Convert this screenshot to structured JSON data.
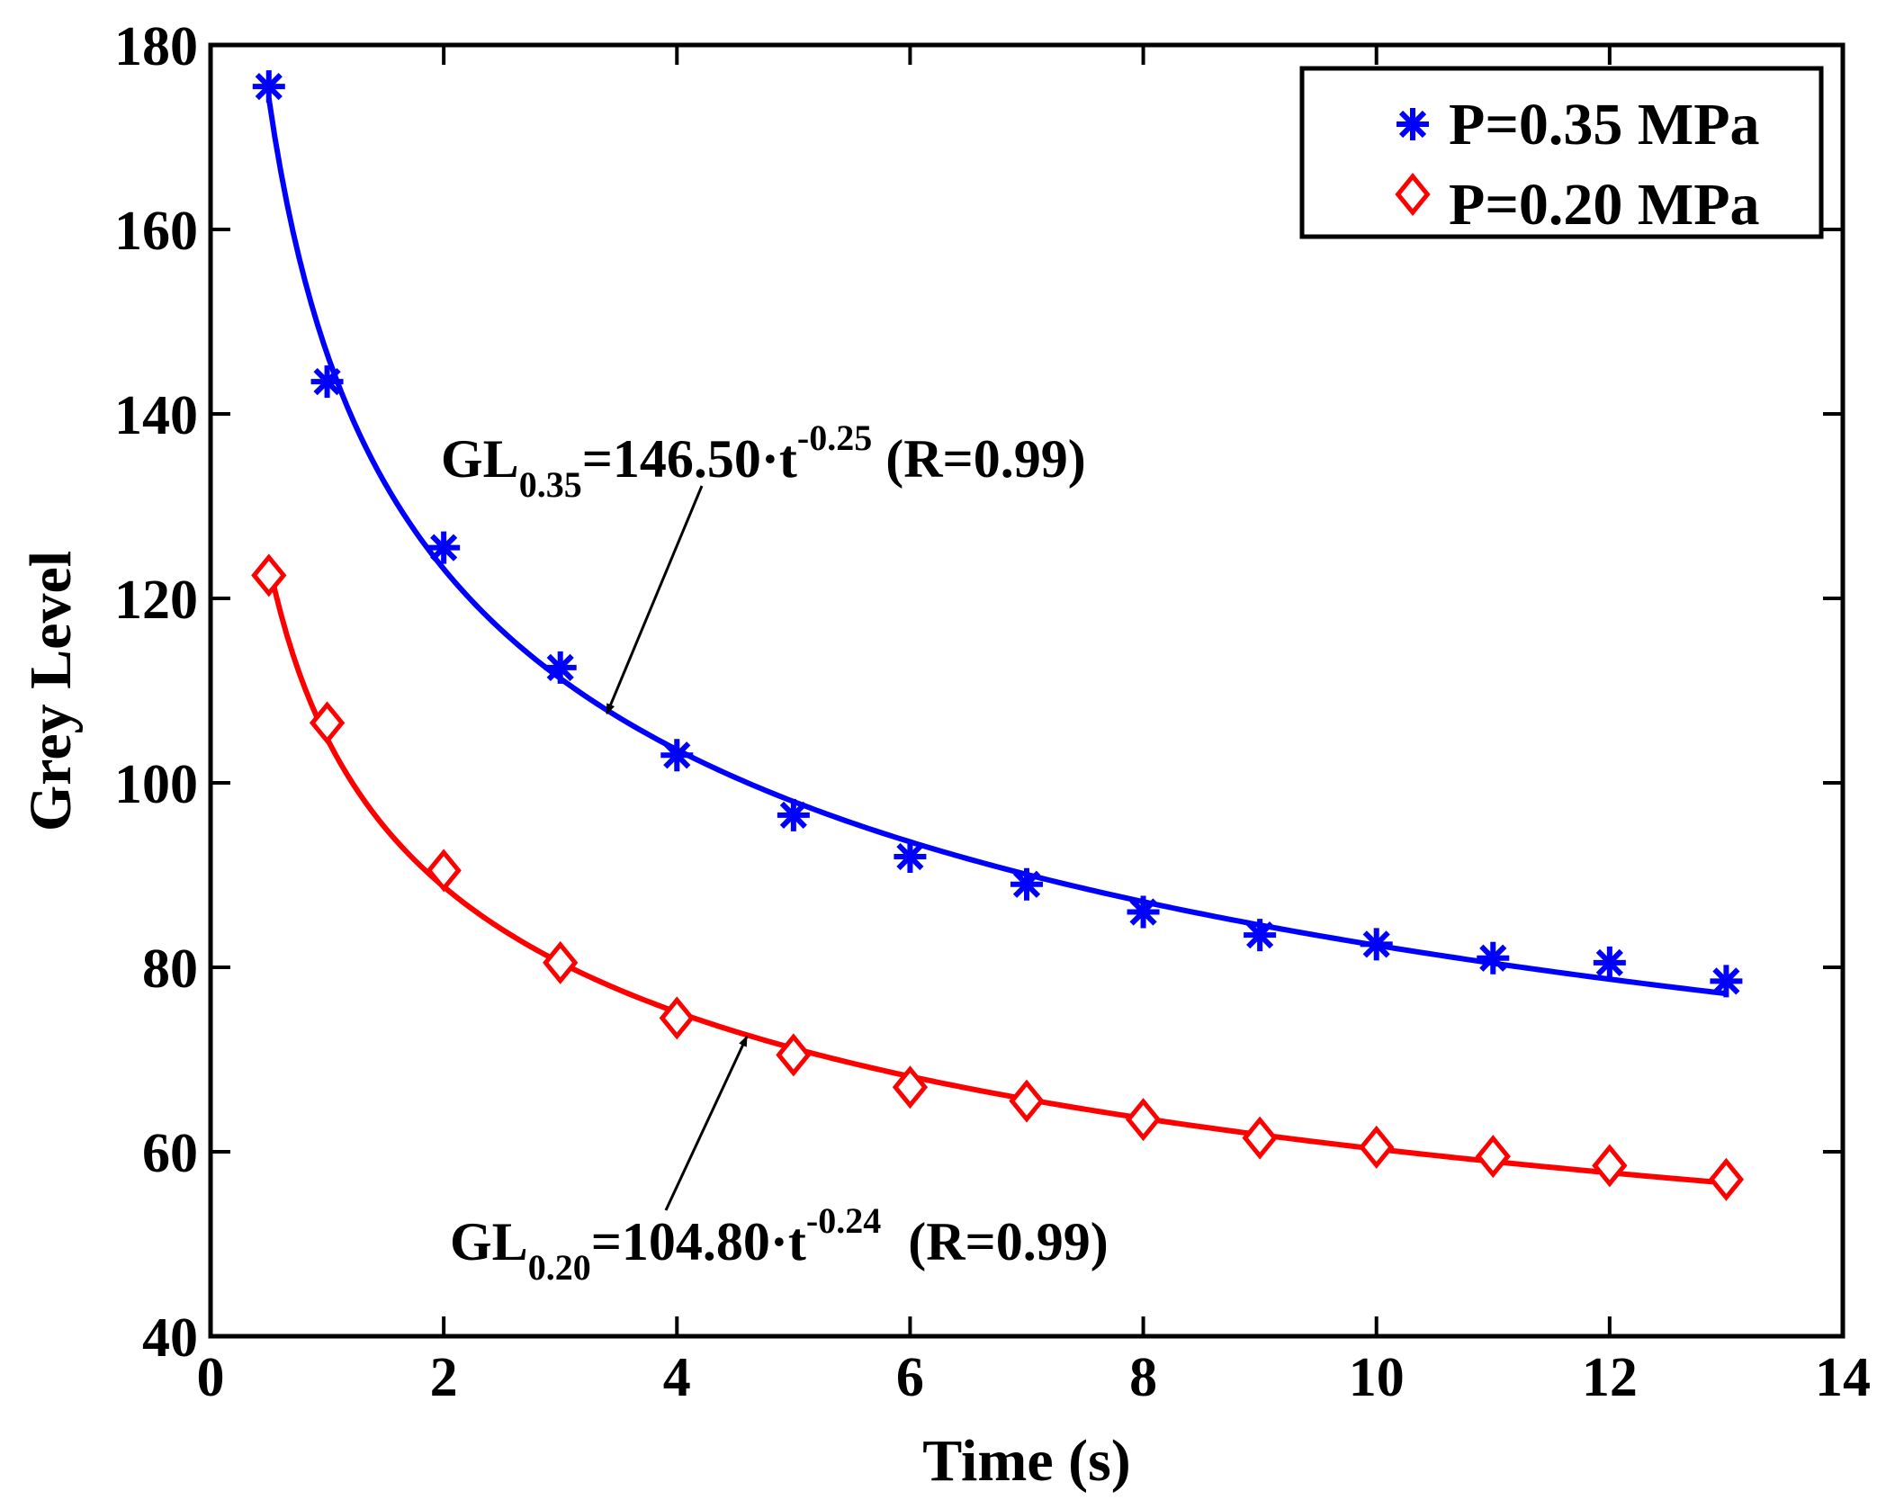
{
  "colors": {
    "series_035": "#0000ff",
    "series_020": "#ff0000",
    "axis": "#000000",
    "background": "#ffffff"
  },
  "chart_data": {
    "type": "scatter",
    "title": "",
    "xlabel": "Time (s)",
    "ylabel": "Grey Level",
    "xlim": [
      0,
      14
    ],
    "ylim": [
      40,
      180
    ],
    "xticks": [
      0,
      2,
      4,
      6,
      8,
      10,
      12,
      14
    ],
    "yticks": [
      40,
      60,
      80,
      100,
      120,
      140,
      160,
      180
    ],
    "grid": false,
    "legend_position": "top-right",
    "series": [
      {
        "name": "P=0.35 MPa",
        "marker": "asterisk",
        "color": "#0000ff",
        "x": [
          0.5,
          1,
          2,
          3,
          4,
          5,
          6,
          7,
          8,
          9,
          10,
          11,
          12,
          13
        ],
        "y": [
          175.5,
          143.5,
          125.5,
          112.5,
          103,
          96.5,
          92,
          89,
          86,
          83.5,
          82.5,
          81,
          80.5,
          78.5
        ],
        "fit": {
          "coefficient": 146.5,
          "exponent": -0.25,
          "x_range": [
            0.5,
            13
          ]
        }
      },
      {
        "name": "P=0.20 MPa",
        "marker": "diamond",
        "color": "#ff0000",
        "x": [
          0.5,
          1,
          2,
          3,
          4,
          5,
          6,
          7,
          8,
          9,
          10,
          11,
          12,
          13
        ],
        "y": [
          122.5,
          106.5,
          90.5,
          80.5,
          74.5,
          70.5,
          67,
          65.5,
          63.5,
          61.5,
          60.5,
          59.5,
          58.5,
          57
        ],
        "fit": {
          "coefficient": 104.8,
          "exponent": -0.24,
          "x_range": [
            0.5,
            13
          ]
        }
      }
    ],
    "annotations": [
      {
        "id": "eq-035",
        "prefix": "GL",
        "subscript": "0.35",
        "body": "=146.50·t",
        "superscript": "-0.25",
        "suffix": " (R=0.99)",
        "arrow_to": {
          "x": 3.4,
          "y": 107.5
        }
      },
      {
        "id": "eq-020",
        "prefix": "GL",
        "subscript": "0.20",
        "body": "=104.80·t",
        "superscript": "-0.24",
        "suffix": "  (R=0.99)",
        "arrow_to": {
          "x": 4.6,
          "y": 72.5
        }
      }
    ]
  }
}
